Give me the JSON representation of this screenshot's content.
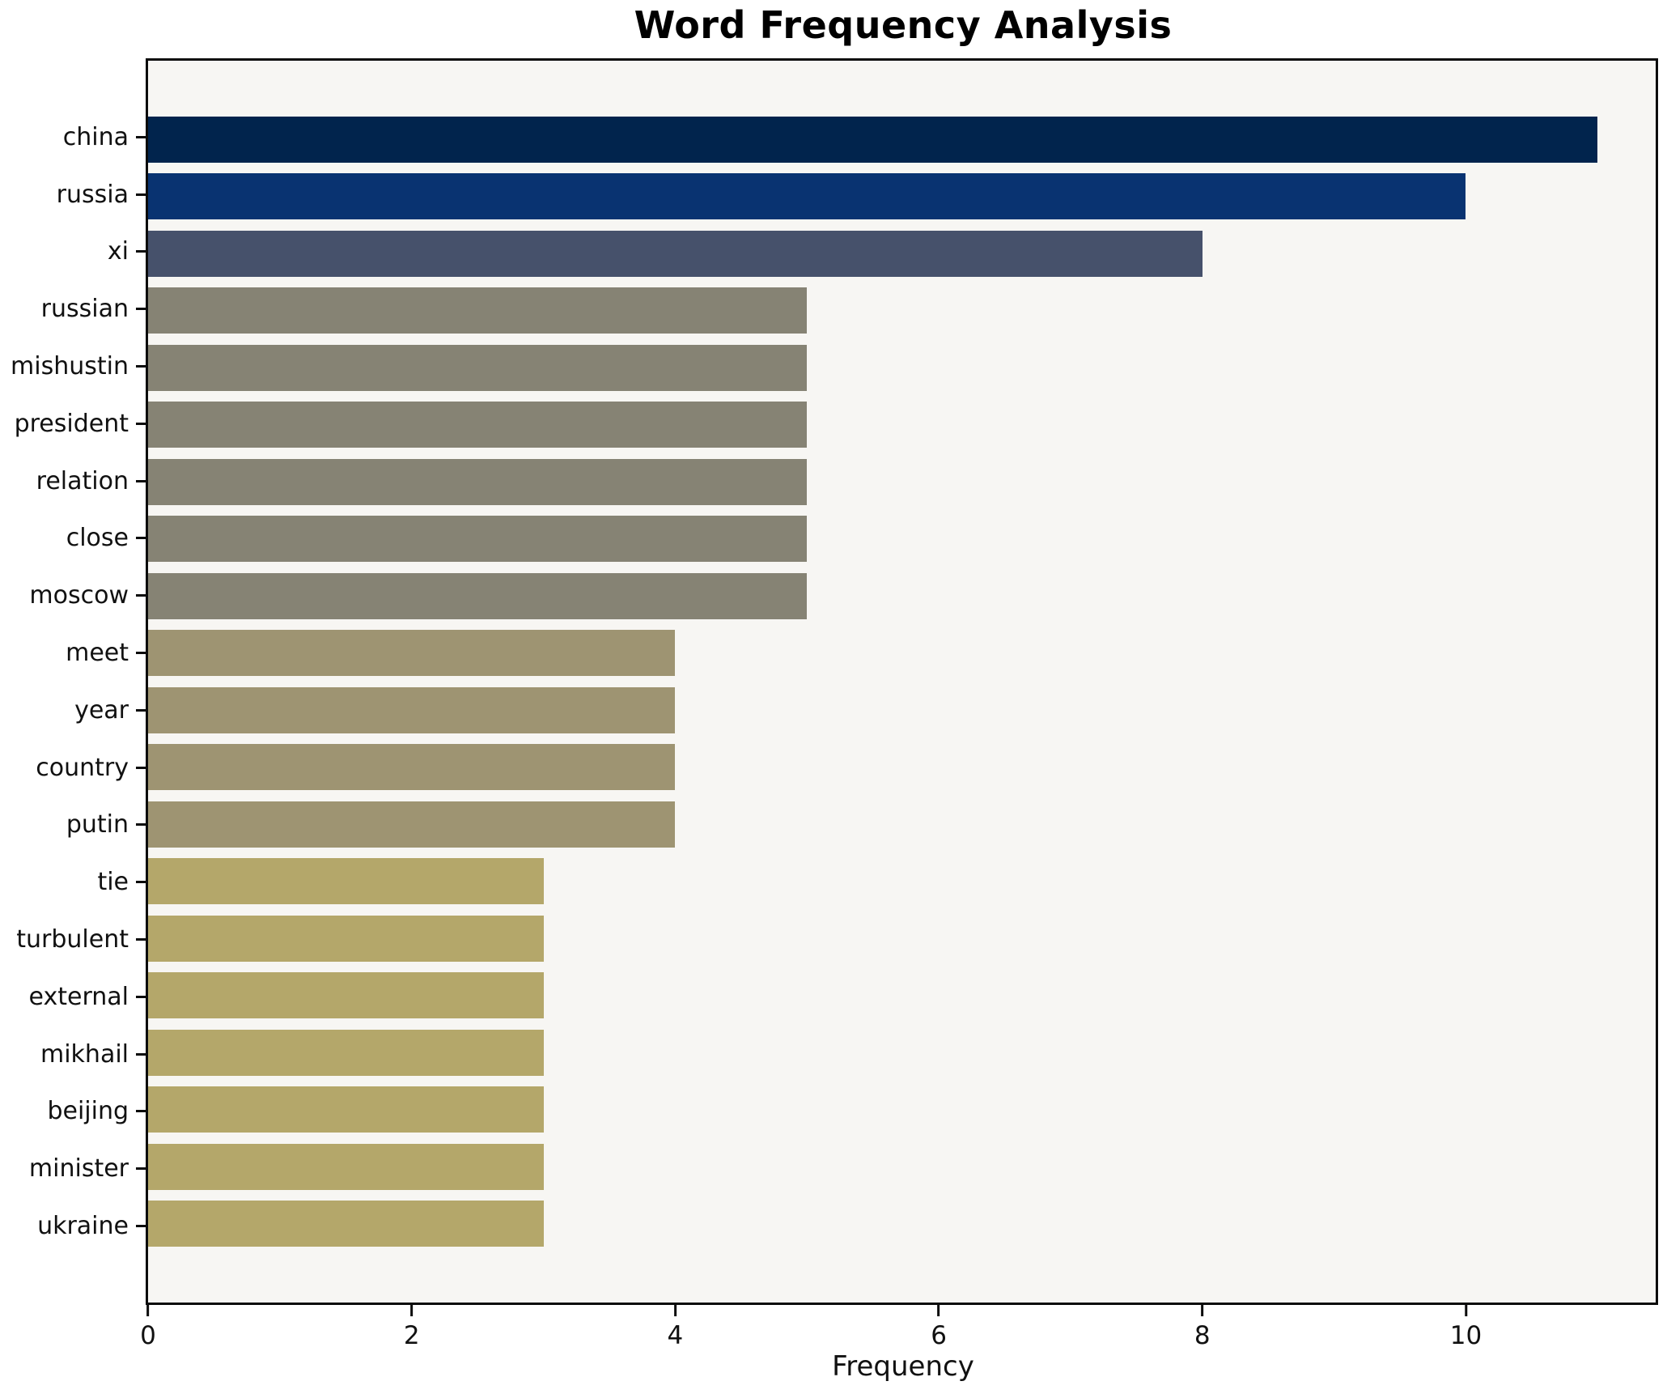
{
  "title": "Word Frequency Analysis",
  "xlabel": "Frequency",
  "colors": {
    "figure_background": "#ffffff",
    "plot_background": "#f7f6f3",
    "axis": "#0b0b0b",
    "text": "#111111"
  },
  "chart_data": {
    "type": "bar",
    "orientation": "horizontal",
    "title": "Word Frequency Analysis",
    "xlabel": "Frequency",
    "ylabel": "",
    "categories": [
      "china",
      "russia",
      "xi",
      "russian",
      "mishustin",
      "president",
      "relation",
      "close",
      "moscow",
      "meet",
      "year",
      "country",
      "putin",
      "tie",
      "turbulent",
      "external",
      "mikhail",
      "beijing",
      "minister",
      "ukraine"
    ],
    "values": [
      11,
      10,
      8,
      5,
      5,
      5,
      5,
      5,
      5,
      4,
      4,
      4,
      4,
      3,
      3,
      3,
      3,
      3,
      3,
      3
    ],
    "bar_colors": [
      "#01244d",
      "#093371",
      "#46516b",
      "#868374",
      "#868374",
      "#868374",
      "#868374",
      "#868374",
      "#868374",
      "#9e9472",
      "#9e9472",
      "#9e9472",
      "#9e9472",
      "#b4a76a",
      "#b4a76a",
      "#b4a76a",
      "#b4a76a",
      "#b4a76a",
      "#b4a76a",
      "#b4a76a"
    ],
    "xlim": [
      0,
      11.44
    ],
    "xticks": [
      0,
      2,
      4,
      6,
      8,
      10
    ],
    "grid": false,
    "legend": null
  }
}
